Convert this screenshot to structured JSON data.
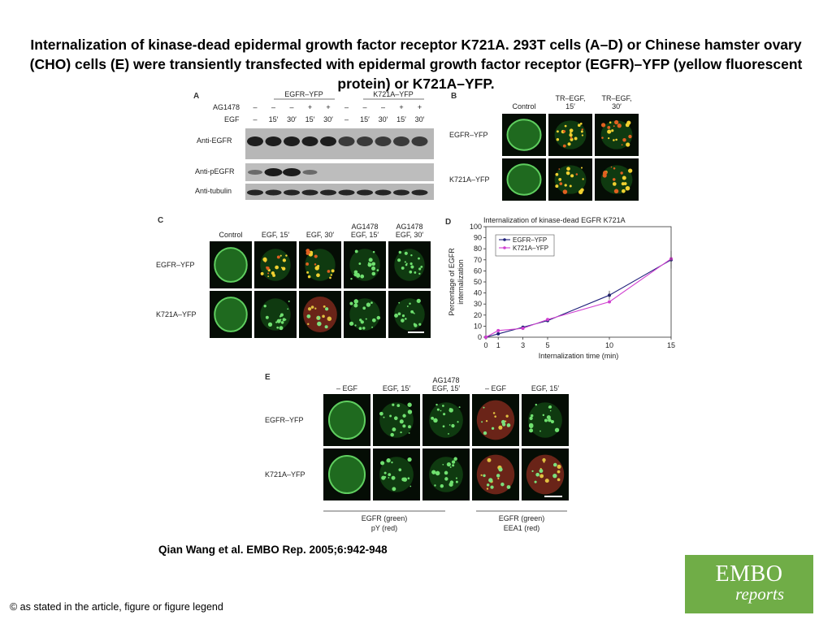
{
  "title": "Internalization of kinase-dead epidermal growth factor receptor K721A. 293T cells (A–D) or Chinese hamster ovary (CHO) cells (E) were transiently transfected with epidermal growth factor receptor (EGFR)–YFP (yellow fluorescent protein) or K721A–YFP.",
  "citation": "Qian Wang et al. EMBO Rep. 2005;6:942-948",
  "copyright": "© as stated in the article, figure or figure legend",
  "logo": {
    "line1": "EMBO",
    "line2": "reports",
    "color": "#70ad47"
  },
  "panel_a": {
    "letter": "A",
    "group1": "EGFR–YFP",
    "group2": "K721A–YFP",
    "row_ag_label": "AG1478",
    "row_ag": [
      "–",
      "–",
      "–",
      "+",
      "+",
      "–",
      "–",
      "–",
      "+",
      "+"
    ],
    "row_egf_label": "EGF",
    "row_egf": [
      "–",
      "15′",
      "30′",
      "15′",
      "30′",
      "–",
      "15′",
      "30′",
      "15′",
      "30′"
    ],
    "blot1": "Anti-EGFR",
    "blot2": "Anti-pEGFR",
    "blot3": "Anti-tubulin"
  },
  "panel_b": {
    "letter": "B",
    "cols": [
      "Control",
      "TR–EGF, 15′",
      "TR–EGF, 30′"
    ],
    "rows": [
      "EGFR–YFP",
      "K721A–YFP"
    ]
  },
  "panel_c": {
    "letter": "C",
    "cols": [
      "Control",
      "EGF, 15′",
      "EGF, 30′",
      "AG1478 EGF, 15′",
      "AG1478 EGF, 30′"
    ],
    "rows": [
      "EGFR–YFP",
      "K721A–YFP"
    ]
  },
  "panel_d": {
    "letter": "D"
  },
  "panel_e": {
    "letter": "E",
    "cols": [
      "– EGF",
      "EGF, 15′",
      "AG1478 EGF, 15′",
      "– EGF",
      "EGF, 15′"
    ],
    "rows": [
      "EGFR–YFP",
      "K721A–YFP"
    ],
    "foot1_line1": "EGFR (green)",
    "foot1_line2": "pY (red)",
    "foot2_line1": "EGFR (green)",
    "foot2_line2": "EEA1 (red)"
  },
  "chart_data": {
    "type": "line",
    "title": "Internalization of kinase-dead EGFR K721A",
    "xlabel": "Internalization time (min)",
    "ylabel": "Percentage of EGFR internalization",
    "x": [
      0,
      1,
      3,
      5,
      10,
      15
    ],
    "x_ticks": [
      "0",
      "1",
      "3",
      "5",
      "10",
      "15"
    ],
    "y_ticks": [
      "0",
      "10",
      "20",
      "30",
      "40",
      "50",
      "60",
      "70",
      "80",
      "90",
      "100"
    ],
    "ylim": [
      0,
      100
    ],
    "legend_position": "top-left",
    "series": [
      {
        "name": "EGFR–YFP",
        "color": "#1f1f7a",
        "values": [
          0,
          3,
          9,
          15,
          38,
          70
        ]
      },
      {
        "name": "K721A–YFP",
        "color": "#d040d0",
        "values": [
          0,
          6,
          8,
          16,
          32,
          71
        ]
      }
    ]
  }
}
